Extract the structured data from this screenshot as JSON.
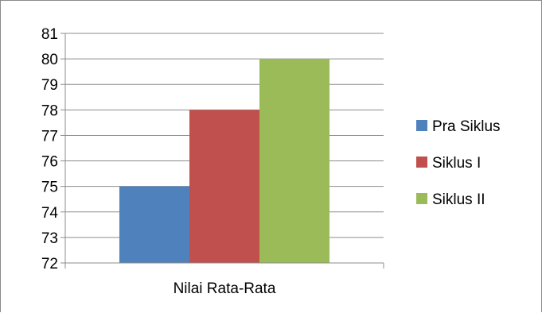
{
  "chart_data": {
    "type": "bar",
    "title": "",
    "xlabel": "",
    "ylabel": "",
    "categories": [
      "Nilai Rata-Rata"
    ],
    "series": [
      {
        "name": "Pra Siklus",
        "values": [
          75
        ],
        "color": "#4f81bd"
      },
      {
        "name": "Siklus I",
        "values": [
          78
        ],
        "color": "#c0504d"
      },
      {
        "name": "Siklus II",
        "values": [
          80
        ],
        "color": "#9bbb59"
      }
    ],
    "ylim": [
      72,
      81
    ],
    "yticks": [
      72,
      73,
      74,
      75,
      76,
      77,
      78,
      79,
      80,
      81
    ],
    "grid": true,
    "legend_position": "right"
  }
}
